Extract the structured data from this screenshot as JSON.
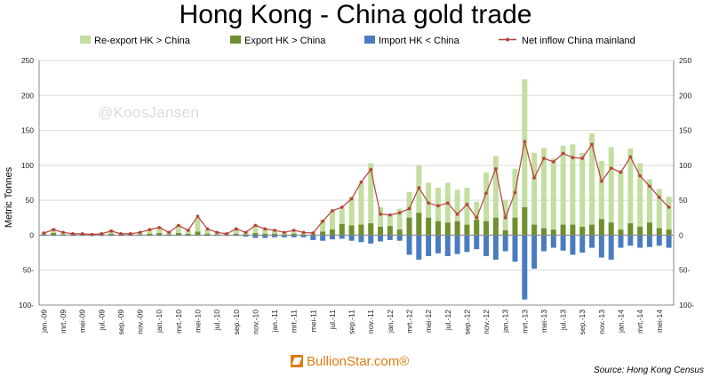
{
  "title": "Hong Kong - China gold trade",
  "watermark": "@KoosJansen",
  "logo_text": "BullionStar.com®",
  "source": "Source: Hong Kong Census",
  "colors": {
    "reexport": "#c3dea0",
    "export": "#6f8e2e",
    "import": "#4a7bc0",
    "net": "#b8403a",
    "grid": "#d9d9d9"
  },
  "chart_data": {
    "type": "bar",
    "title": "Hong Kong - China gold trade",
    "xlabel": "",
    "ylabel": "Metric Tonnes",
    "ylim": [
      -100,
      250
    ],
    "yticks": [
      -100,
      -50,
      0,
      50,
      100,
      150,
      200,
      250
    ],
    "ytick_labels": [
      "100-",
      "50-",
      "0",
      "50",
      "100",
      "150",
      "200",
      "250"
    ],
    "grid": true,
    "legend_position": "top",
    "categories": [
      "jan.-09",
      "feb.-09",
      "mrt.-09",
      "apr.-09",
      "mei-09",
      "jun.-09",
      "jul.-09",
      "aug.-09",
      "sep.-09",
      "okt.-09",
      "nov.-09",
      "dec.-09",
      "jan.-10",
      "feb.-10",
      "mrt.-10",
      "apr.-10",
      "mei-10",
      "jun.-10",
      "jul.-10",
      "aug.-10",
      "sep.-10",
      "okt.-10",
      "nov.-10",
      "dec.-10",
      "jan.-11",
      "feb.-11",
      "mrt.-11",
      "apr.-11",
      "mei-11",
      "jun.-11",
      "jul.-11",
      "aug.-11",
      "sep.-11",
      "okt.-11",
      "nov.-11",
      "dec.-11",
      "jan.-12",
      "feb.-12",
      "mrt.-12",
      "apr.-12",
      "mei-12",
      "jun.-12",
      "jul.-12",
      "aug.-12",
      "sep.-12",
      "okt.-12",
      "nov.-12",
      "dec.-12",
      "jan.-13",
      "feb.-13",
      "mrt.-13",
      "apr.-13",
      "mei-13",
      "jun.-13",
      "jul.-13",
      "aug.-13",
      "sep.-13",
      "okt.-13",
      "nov.-13",
      "dec.-13",
      "jan.-14",
      "feb.-14",
      "mrt.-14",
      "apr.-14",
      "mei-14",
      "jun.-14"
    ],
    "xtick_labels": [
      "jan.-09",
      "mrt.-09",
      "mei-09",
      "jul.-09",
      "sep.-09",
      "nov.-09",
      "jan.-10",
      "mrt.-10",
      "mei-10",
      "jul.-10",
      "sep.-10",
      "nov.-10",
      "jan.-11",
      "mrt.-11",
      "mei-11",
      "jul.-11",
      "sep.-11",
      "nov.-11",
      "jan.-12",
      "mrt.-12",
      "mei-12",
      "jul.-12",
      "sep.-12",
      "nov.-12",
      "jan.-13",
      "mrt.-13",
      "mei-13",
      "jul.-13",
      "sep.-13",
      "nov.-13",
      "jan.-14",
      "mrt.-14",
      "mei-14"
    ],
    "series": [
      {
        "name": "Re-export HK > China",
        "kind": "bar",
        "values": [
          5,
          10,
          5,
          3,
          3,
          3,
          3,
          8,
          3,
          3,
          5,
          8,
          12,
          5,
          15,
          8,
          25,
          8,
          5,
          3,
          10,
          5,
          15,
          10,
          8,
          5,
          8,
          5,
          5,
          22,
          35,
          38,
          55,
          75,
          103,
          40,
          30,
          38,
          62,
          100,
          75,
          68,
          75,
          65,
          68,
          48,
          90,
          113,
          50,
          95,
          223,
          118,
          125,
          110,
          128,
          130,
          118,
          146,
          106,
          126,
          93,
          124,
          103,
          80,
          66,
          55
        ]
      },
      {
        "name": "Export HK > China",
        "kind": "bar",
        "values": [
          1,
          3,
          1,
          1,
          1,
          1,
          1,
          2,
          1,
          1,
          1,
          2,
          3,
          1,
          3,
          2,
          5,
          2,
          1,
          1,
          2,
          1,
          3,
          2,
          2,
          1,
          2,
          1,
          1,
          5,
          8,
          16,
          14,
          15,
          17,
          12,
          13,
          8,
          25,
          32,
          25,
          20,
          18,
          20,
          15,
          22,
          20,
          25,
          7,
          25,
          40,
          15,
          10,
          8,
          15,
          15,
          12,
          15,
          23,
          18,
          8,
          17,
          12,
          18,
          10,
          8
        ]
      },
      {
        "name": "Import HK < China",
        "kind": "bar",
        "values": [
          -1,
          -1,
          -1,
          -1,
          -1,
          -1,
          -1,
          -1,
          -1,
          -1,
          -1,
          -1,
          -1,
          -1,
          -1,
          -1,
          -1,
          -1,
          -1,
          -1,
          -1,
          -2,
          -4,
          -4,
          -3,
          -3,
          -3,
          -3,
          -7,
          -8,
          -6,
          -5,
          -8,
          -10,
          -12,
          -9,
          -7,
          -8,
          -28,
          -35,
          -30,
          -26,
          -30,
          -27,
          -24,
          -20,
          -30,
          -35,
          -23,
          -38,
          -92,
          -48,
          -23,
          -18,
          -22,
          -28,
          -25,
          -18,
          -32,
          -35,
          -18,
          -15,
          -18,
          -17,
          -15,
          -18
        ]
      },
      {
        "name": "Net inflow China mainland",
        "kind": "line",
        "values": [
          3,
          8,
          4,
          2,
          2,
          1,
          2,
          6,
          2,
          2,
          4,
          8,
          11,
          4,
          14,
          7,
          27,
          9,
          4,
          2,
          9,
          4,
          14,
          9,
          7,
          4,
          7,
          4,
          3,
          20,
          35,
          40,
          52,
          76,
          94,
          30,
          29,
          32,
          38,
          68,
          46,
          42,
          46,
          30,
          44,
          25,
          60,
          95,
          25,
          61,
          134,
          82,
          110,
          105,
          117,
          111,
          110,
          130,
          77,
          96,
          90,
          112,
          85,
          70,
          54,
          40
        ]
      }
    ]
  }
}
